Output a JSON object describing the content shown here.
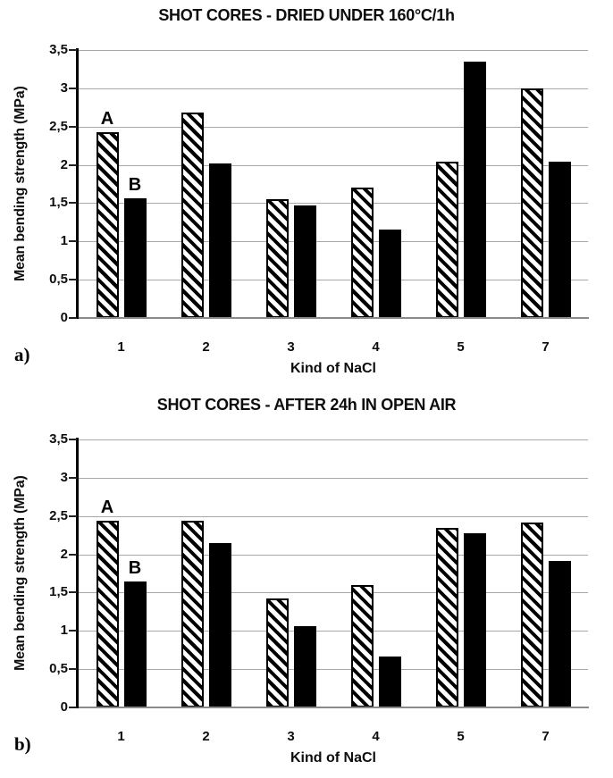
{
  "colors": {
    "bar_fill": "#000000",
    "hatch_foreground": "#000000",
    "hatch_background": "#ffffff",
    "gridline": "#a8a8a8",
    "axis": "#000000",
    "text": "#0d0d0d",
    "background": "#ffffff"
  },
  "chart_data": [
    {
      "type": "bar",
      "panel_label": "a)",
      "title": "SHOT CORES - DRIED UNDER 160°C/1h",
      "xlabel": "Kind of NaCl",
      "ylabel": "Mean bending strength (MPa)",
      "categories": [
        "1",
        "2",
        "3",
        "4",
        "5",
        "7"
      ],
      "series": [
        {
          "name": "A",
          "pattern": "hatched",
          "values": [
            2.43,
            2.68,
            1.55,
            1.7,
            2.04,
            3.0
          ]
        },
        {
          "name": "B",
          "pattern": "solid",
          "values": [
            1.56,
            2.02,
            1.47,
            1.15,
            3.35,
            2.04
          ]
        }
      ],
      "ylim": [
        0,
        3.5
      ],
      "ytick_step": 0.5,
      "ytick_labels": [
        "0",
        "0,5",
        "1",
        "1,5",
        "2",
        "2,5",
        "3",
        "3,5"
      ],
      "grid": true,
      "legend_position": "none",
      "on_plot_series_labels": [
        {
          "text": "A",
          "series": 0,
          "category": 0
        },
        {
          "text": "B",
          "series": 1,
          "category": 0
        }
      ]
    },
    {
      "type": "bar",
      "panel_label": "b)",
      "title": "SHOT CORES - AFTER 24h IN OPEN AIR",
      "xlabel": "Kind of NaCl",
      "ylabel": "Mean bending strength (MPa)",
      "categories": [
        "1",
        "2",
        "3",
        "4",
        "5",
        "7"
      ],
      "series": [
        {
          "name": "A",
          "pattern": "hatched",
          "values": [
            2.44,
            2.44,
            1.42,
            1.6,
            2.35,
            2.42
          ]
        },
        {
          "name": "B",
          "pattern": "solid",
          "values": [
            1.65,
            2.15,
            1.06,
            0.66,
            2.27,
            1.91
          ]
        }
      ],
      "ylim": [
        0,
        3.5
      ],
      "ytick_step": 0.5,
      "ytick_labels": [
        "0",
        "0,5",
        "1",
        "1,5",
        "2",
        "2,5",
        "3",
        "3,5"
      ],
      "grid": true,
      "legend_position": "none",
      "on_plot_series_labels": [
        {
          "text": "A",
          "series": 0,
          "category": 0
        },
        {
          "text": "B",
          "series": 1,
          "category": 0
        }
      ]
    }
  ]
}
